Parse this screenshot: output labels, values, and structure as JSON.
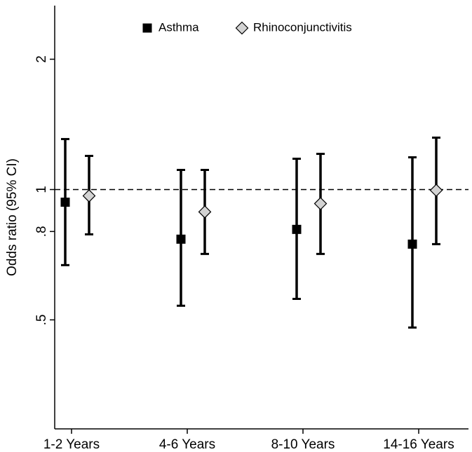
{
  "chart_data": {
    "type": "errorbar",
    "y_label": "Odds ratio (95% CI)",
    "categories": [
      "1-2 Years",
      "4-6 Years",
      "8-10 Years",
      "14-16 Years"
    ],
    "series": [
      {
        "name": "Asthma",
        "color": "#000000",
        "marker": "square",
        "values": [
          0.935,
          0.768,
          0.809,
          0.748
        ],
        "lower": [
          0.669,
          0.539,
          0.559,
          0.48
        ],
        "upper": [
          1.308,
          1.11,
          1.178,
          1.187
        ]
      },
      {
        "name": "Rhinoconjunctivitis",
        "color": "#d3d3d3",
        "marker": "diamond",
        "values": [
          0.967,
          0.888,
          0.928,
          0.996
        ],
        "lower": [
          0.788,
          0.71,
          0.71,
          0.748
        ],
        "upper": [
          1.196,
          1.11,
          1.209,
          1.318
        ]
      }
    ],
    "ylim": [
      0.28,
      2.66
    ],
    "yticks": [
      {
        "value": 0.5,
        "label": ".5"
      },
      {
        "value": 0.8,
        "label": ".8"
      },
      1,
      2
    ],
    "log_y": true,
    "reference_line": 1,
    "legend": "top"
  }
}
